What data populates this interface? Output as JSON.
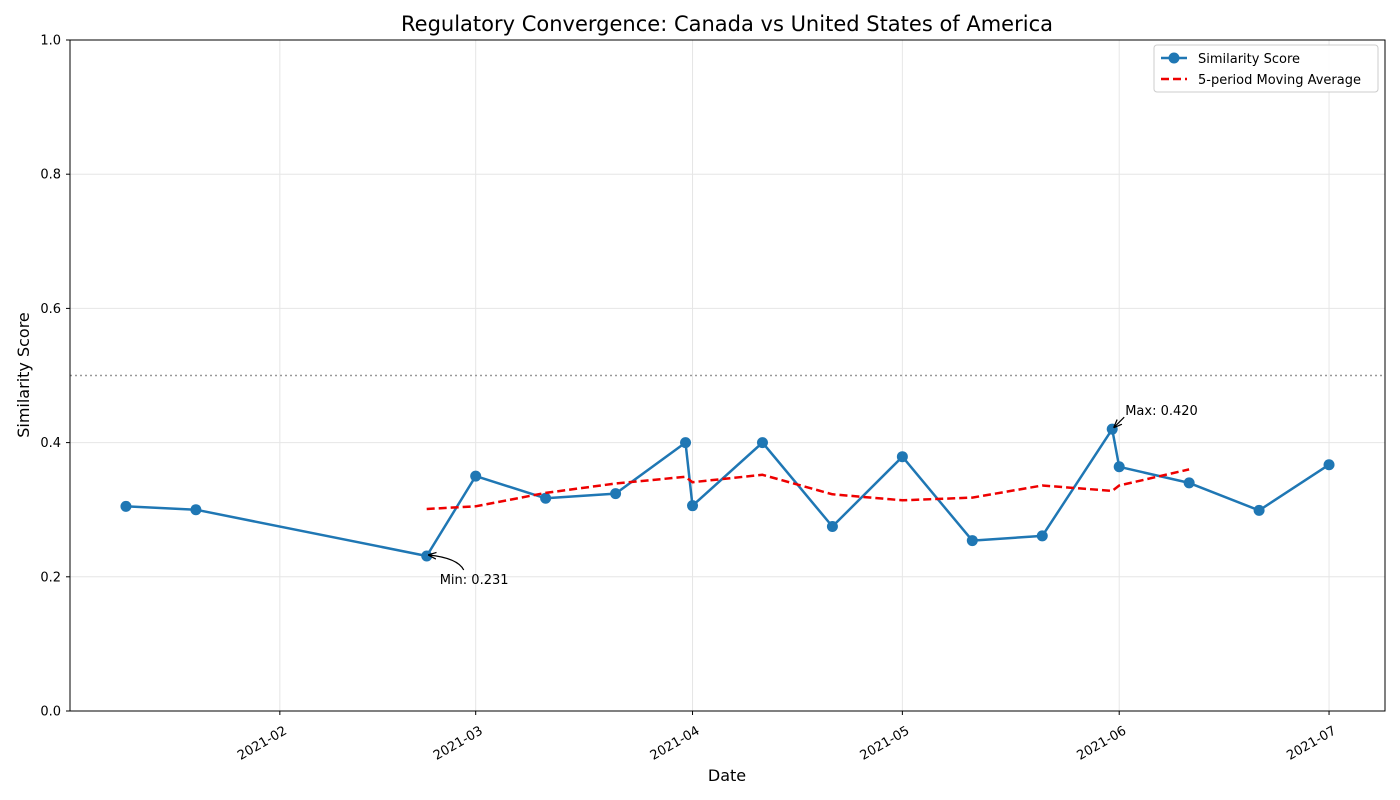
{
  "chart_data": {
    "type": "line",
    "title": "Regulatory Convergence: Canada vs United States of America",
    "xlabel": "Date",
    "ylabel": "Similarity Score",
    "ylim": [
      0,
      1
    ],
    "yticks": [
      "0.0",
      "0.2",
      "0.4",
      "0.6",
      "0.8",
      "1.0"
    ],
    "xlim": [
      "2021-01-02",
      "2021-07-09"
    ],
    "xticks": [
      {
        "date": "2021-02-01",
        "label": "2021-02"
      },
      {
        "date": "2021-03-01",
        "label": "2021-03"
      },
      {
        "date": "2021-04-01",
        "label": "2021-04"
      },
      {
        "date": "2021-05-01",
        "label": "2021-05"
      },
      {
        "date": "2021-06-01",
        "label": "2021-06"
      },
      {
        "date": "2021-07-01",
        "label": "2021-07"
      }
    ],
    "grid": true,
    "reference_line": {
      "y": 0.5,
      "color": "#999999",
      "style": "dotted"
    },
    "series": [
      {
        "name": "Similarity Score",
        "color": "#1f77b4",
        "style": "solid-marker",
        "points": [
          {
            "x": "2021-01-10",
            "y": 0.305
          },
          {
            "x": "2021-01-20",
            "y": 0.3
          },
          {
            "x": "2021-02-22",
            "y": 0.231
          },
          {
            "x": "2021-03-01",
            "y": 0.35
          },
          {
            "x": "2021-03-11",
            "y": 0.317
          },
          {
            "x": "2021-03-21",
            "y": 0.324
          },
          {
            "x": "2021-03-31",
            "y": 0.4
          },
          {
            "x": "2021-04-01",
            "y": 0.306
          },
          {
            "x": "2021-04-11",
            "y": 0.4
          },
          {
            "x": "2021-04-21",
            "y": 0.275
          },
          {
            "x": "2021-05-01",
            "y": 0.379
          },
          {
            "x": "2021-05-11",
            "y": 0.254
          },
          {
            "x": "2021-05-21",
            "y": 0.261
          },
          {
            "x": "2021-05-31",
            "y": 0.42
          },
          {
            "x": "2021-06-01",
            "y": 0.364
          },
          {
            "x": "2021-06-11",
            "y": 0.34
          },
          {
            "x": "2021-06-21",
            "y": 0.299
          },
          {
            "x": "2021-07-01",
            "y": 0.367
          }
        ]
      },
      {
        "name": "5-period Moving Average",
        "color": "#ee0000",
        "style": "dashed",
        "points": [
          {
            "x": "2021-02-22",
            "y": 0.301
          },
          {
            "x": "2021-03-01",
            "y": 0.305
          },
          {
            "x": "2021-03-11",
            "y": 0.325
          },
          {
            "x": "2021-03-21",
            "y": 0.339
          },
          {
            "x": "2021-03-31",
            "y": 0.349
          },
          {
            "x": "2021-04-01",
            "y": 0.341
          },
          {
            "x": "2021-04-11",
            "y": 0.352
          },
          {
            "x": "2021-04-21",
            "y": 0.323
          },
          {
            "x": "2021-05-01",
            "y": 0.314
          },
          {
            "x": "2021-05-11",
            "y": 0.318
          },
          {
            "x": "2021-05-21",
            "y": 0.336
          },
          {
            "x": "2021-05-31",
            "y": 0.328
          },
          {
            "x": "2021-06-01",
            "y": 0.336
          },
          {
            "x": "2021-06-11",
            "y": 0.36
          }
        ]
      }
    ],
    "annotations": [
      {
        "label": "Min: 0.231",
        "x": "2021-02-22",
        "y": 0.231,
        "placement": "below-right"
      },
      {
        "label": "Max: 0.420",
        "x": "2021-05-31",
        "y": 0.42,
        "placement": "above-right"
      }
    ],
    "legend": {
      "position": "top-right",
      "entries": [
        "Similarity Score",
        "5-period Moving Average"
      ]
    }
  }
}
